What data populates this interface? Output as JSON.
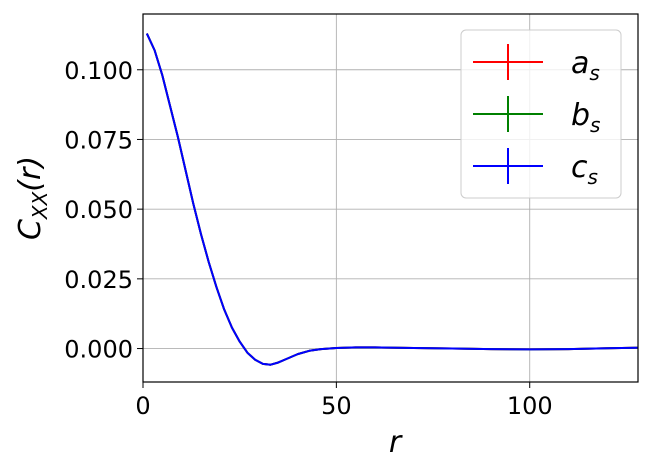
{
  "chart_data": {
    "type": "line",
    "xlabel": "r",
    "ylabel_main": "C",
    "ylabel_sub": "XX",
    "ylabel_tail": "(r)",
    "xlim": [
      0,
      128
    ],
    "ylim": [
      -0.012,
      0.12
    ],
    "grid": true,
    "legend_position": "top-right",
    "x_ticks": [
      0,
      50,
      100
    ],
    "x_tick_labels": [
      "0",
      "50",
      "100"
    ],
    "y_ticks": [
      0.0,
      0.025,
      0.05,
      0.075,
      0.1
    ],
    "y_tick_labels": [
      "0.000",
      "0.025",
      "0.050",
      "0.075",
      "0.100"
    ],
    "series": [
      {
        "name_main": "a",
        "name_sub": "s",
        "color": "#ff0000",
        "x": [
          1,
          3,
          5,
          7,
          9,
          11,
          13,
          15,
          17,
          19,
          21,
          23,
          25,
          27,
          29,
          31,
          33,
          35,
          37,
          40,
          43,
          46,
          50,
          55,
          60,
          70,
          80,
          90,
          100,
          110,
          120,
          128
        ],
        "y": [
          0.113,
          0.107,
          0.098,
          0.087,
          0.076,
          0.064,
          0.052,
          0.041,
          0.031,
          0.022,
          0.014,
          0.0075,
          0.0025,
          -0.0015,
          -0.004,
          -0.0055,
          -0.0058,
          -0.005,
          -0.0038,
          -0.002,
          -0.0008,
          -0.0002,
          0.0002,
          0.0004,
          0.0004,
          0.0002,
          0.0,
          -0.0002,
          -0.0003,
          -0.0002,
          0.0001,
          0.0003
        ]
      },
      {
        "name_main": "b",
        "name_sub": "s",
        "color": "#008000",
        "x": [
          1,
          3,
          5,
          7,
          9,
          11,
          13,
          15,
          17,
          19,
          21,
          23,
          25,
          27,
          29,
          31,
          33,
          35,
          37,
          40,
          43,
          46,
          50,
          55,
          60,
          70,
          80,
          90,
          100,
          110,
          120,
          128
        ],
        "y": [
          0.113,
          0.107,
          0.098,
          0.087,
          0.076,
          0.064,
          0.052,
          0.041,
          0.031,
          0.022,
          0.014,
          0.0075,
          0.0025,
          -0.0015,
          -0.004,
          -0.0055,
          -0.0058,
          -0.005,
          -0.0038,
          -0.002,
          -0.0008,
          -0.0002,
          0.0002,
          0.0004,
          0.0004,
          0.0002,
          0.0,
          -0.0002,
          -0.0003,
          -0.0002,
          0.0001,
          0.0003
        ]
      },
      {
        "name_main": "c",
        "name_sub": "s",
        "color": "#0000ff",
        "x": [
          1,
          3,
          5,
          7,
          9,
          11,
          13,
          15,
          17,
          19,
          21,
          23,
          25,
          27,
          29,
          31,
          33,
          35,
          37,
          40,
          43,
          46,
          50,
          55,
          60,
          70,
          80,
          90,
          100,
          110,
          120,
          128
        ],
        "y": [
          0.113,
          0.107,
          0.098,
          0.087,
          0.076,
          0.064,
          0.052,
          0.041,
          0.031,
          0.022,
          0.014,
          0.0075,
          0.0025,
          -0.0015,
          -0.004,
          -0.0055,
          -0.0058,
          -0.005,
          -0.0038,
          -0.002,
          -0.0008,
          -0.0002,
          0.0002,
          0.0004,
          0.0004,
          0.0002,
          0.0,
          -0.0002,
          -0.0003,
          -0.0002,
          0.0001,
          0.0003
        ]
      }
    ]
  }
}
